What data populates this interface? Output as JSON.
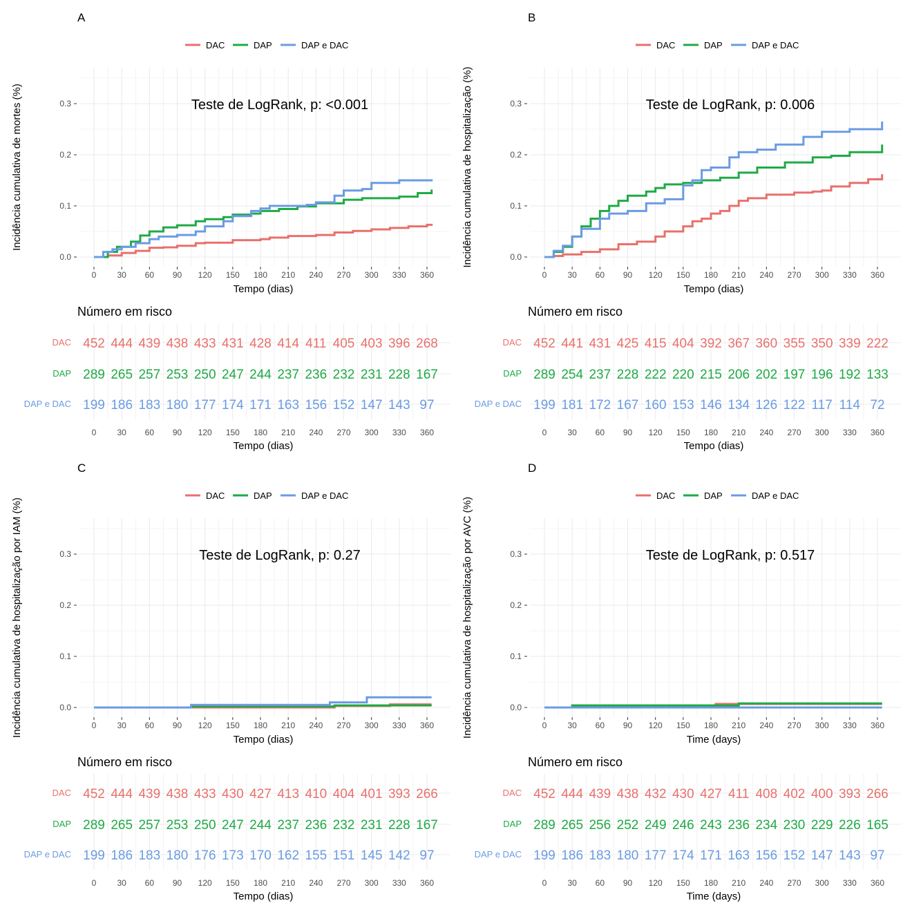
{
  "x_ticks": [
    "0",
    "30",
    "60",
    "90",
    "120",
    "150",
    "180",
    "210",
    "240",
    "270",
    "300",
    "330",
    "360"
  ],
  "y_ticks": [
    "0.0",
    "0.1",
    "0.2",
    "0.3"
  ],
  "risk_title": "Número em risco",
  "colors": {
    "DAC": "#E8706B",
    "DAP": "#1EAA45",
    "DAP e DAC": "#6A9BE3",
    "grid": "#EBEBEB",
    "tick_text": "#4D4D4D"
  },
  "chart_data": [
    {
      "type": "line",
      "panel_label": "A",
      "legend": [
        "DAC",
        "DAP",
        "DAP e DAC"
      ],
      "annotation": "Teste de LogRank, p: <0.001",
      "xlabel": "Tempo (dias)",
      "ylabel": "Incidência cumulativa de mortes (%)",
      "xlim": [
        0,
        365
      ],
      "ylim": [
        0,
        0.35
      ],
      "series": [
        {
          "name": "DAC",
          "x": [
            0,
            15,
            30,
            45,
            60,
            75,
            90,
            110,
            120,
            150,
            180,
            190,
            210,
            240,
            260,
            280,
            300,
            320,
            340,
            360,
            365
          ],
          "y": [
            0,
            0.003,
            0.008,
            0.012,
            0.018,
            0.019,
            0.022,
            0.027,
            0.028,
            0.033,
            0.035,
            0.038,
            0.041,
            0.043,
            0.048,
            0.051,
            0.054,
            0.057,
            0.06,
            0.063,
            0.065
          ]
        },
        {
          "name": "DAP",
          "x": [
            0,
            15,
            25,
            40,
            50,
            60,
            75,
            90,
            110,
            120,
            140,
            150,
            170,
            180,
            200,
            220,
            240,
            270,
            290,
            330,
            350,
            365
          ],
          "y": [
            0,
            0.01,
            0.02,
            0.03,
            0.042,
            0.05,
            0.058,
            0.062,
            0.07,
            0.074,
            0.078,
            0.083,
            0.085,
            0.09,
            0.094,
            0.099,
            0.105,
            0.112,
            0.115,
            0.118,
            0.125,
            0.132
          ]
        },
        {
          "name": "DAP e DAC",
          "x": [
            0,
            10,
            20,
            30,
            45,
            60,
            70,
            90,
            110,
            120,
            140,
            150,
            170,
            180,
            190,
            210,
            230,
            240,
            260,
            270,
            290,
            300,
            330,
            365
          ],
          "y": [
            0,
            0.01,
            0.015,
            0.02,
            0.027,
            0.035,
            0.04,
            0.043,
            0.05,
            0.06,
            0.07,
            0.08,
            0.09,
            0.095,
            0.1,
            0.1,
            0.102,
            0.107,
            0.12,
            0.13,
            0.133,
            0.145,
            0.15,
            0.152
          ]
        }
      ],
      "risk_table": {
        "groups": [
          "DAC",
          "DAP",
          "DAP e DAC"
        ],
        "values": [
          [
            "452",
            "444",
            "439",
            "438",
            "433",
            "431",
            "428",
            "414",
            "411",
            "405",
            "403",
            "396",
            "268"
          ],
          [
            "289",
            "265",
            "257",
            "253",
            "250",
            "247",
            "244",
            "237",
            "236",
            "232",
            "231",
            "228",
            "167"
          ],
          [
            "199",
            "186",
            "183",
            "180",
            "177",
            "174",
            "171",
            "163",
            "156",
            "152",
            "147",
            "143",
            "97"
          ]
        ],
        "xlabel": "Tempo (dias)"
      }
    },
    {
      "type": "line",
      "panel_label": "B",
      "legend": [
        "DAC",
        "DAP",
        "DAP e DAC"
      ],
      "annotation": "Teste de LogRank, p: 0.006",
      "xlabel": "Tempo (dias)",
      "ylabel": "Incidência cumulativa de hospitalização (%)",
      "xlim": [
        0,
        365
      ],
      "ylim": [
        0,
        0.35
      ],
      "series": [
        {
          "name": "DAC",
          "x": [
            0,
            10,
            20,
            40,
            60,
            80,
            100,
            120,
            130,
            150,
            160,
            170,
            180,
            190,
            200,
            210,
            220,
            240,
            270,
            290,
            300,
            310,
            330,
            350,
            365
          ],
          "y": [
            0,
            0.002,
            0.005,
            0.01,
            0.015,
            0.025,
            0.03,
            0.04,
            0.05,
            0.06,
            0.07,
            0.075,
            0.085,
            0.09,
            0.1,
            0.11,
            0.115,
            0.122,
            0.126,
            0.128,
            0.13,
            0.138,
            0.145,
            0.152,
            0.162
          ]
        },
        {
          "name": "DAP",
          "x": [
            0,
            10,
            20,
            30,
            40,
            50,
            60,
            70,
            80,
            90,
            110,
            120,
            130,
            150,
            170,
            190,
            210,
            230,
            260,
            290,
            310,
            330,
            365
          ],
          "y": [
            0,
            0.01,
            0.02,
            0.04,
            0.06,
            0.075,
            0.09,
            0.1,
            0.11,
            0.12,
            0.128,
            0.135,
            0.142,
            0.145,
            0.15,
            0.155,
            0.165,
            0.175,
            0.185,
            0.195,
            0.198,
            0.205,
            0.22
          ]
        },
        {
          "name": "DAP e DAC",
          "x": [
            0,
            10,
            20,
            30,
            40,
            60,
            70,
            90,
            110,
            130,
            150,
            160,
            170,
            180,
            200,
            210,
            230,
            250,
            280,
            300,
            330,
            365
          ],
          "y": [
            0,
            0.012,
            0.022,
            0.04,
            0.055,
            0.075,
            0.085,
            0.09,
            0.105,
            0.113,
            0.14,
            0.15,
            0.17,
            0.175,
            0.195,
            0.205,
            0.21,
            0.22,
            0.235,
            0.245,
            0.25,
            0.265
          ]
        }
      ],
      "risk_table": {
        "groups": [
          "DAC",
          "DAP",
          "DAP e DAC"
        ],
        "values": [
          [
            "452",
            "441",
            "431",
            "425",
            "415",
            "404",
            "392",
            "367",
            "360",
            "355",
            "350",
            "339",
            "222"
          ],
          [
            "289",
            "254",
            "237",
            "228",
            "222",
            "220",
            "215",
            "206",
            "202",
            "197",
            "196",
            "192",
            "133"
          ],
          [
            "199",
            "181",
            "172",
            "167",
            "160",
            "153",
            "146",
            "134",
            "126",
            "122",
            "117",
            "114",
            "72"
          ]
        ],
        "xlabel": "Tempo (dias)"
      }
    },
    {
      "type": "line",
      "panel_label": "C",
      "legend": [
        "DAC",
        "DAP",
        "DAP e DAC"
      ],
      "annotation": "Teste de LogRank, p: 0.27",
      "xlabel": "Tempo (dias)",
      "ylabel": "Incidência cumulativa de hospitalização por IAM (%)",
      "xlim": [
        0,
        365
      ],
      "ylim": [
        0,
        0.35
      ],
      "series": [
        {
          "name": "DAC",
          "x": [
            0,
            250,
            260,
            320,
            365
          ],
          "y": [
            0,
            0,
            0.003,
            0.006,
            0.006
          ]
        },
        {
          "name": "DAP",
          "x": [
            0,
            105,
            250,
            260,
            365
          ],
          "y": [
            0,
            0.002,
            0.002,
            0.004,
            0.004
          ]
        },
        {
          "name": "DAP e DAC",
          "x": [
            0,
            105,
            255,
            295,
            365
          ],
          "y": [
            0,
            0.005,
            0.01,
            0.02,
            0.02
          ]
        }
      ],
      "risk_table": {
        "groups": [
          "DAC",
          "DAP",
          "DAP e DAC"
        ],
        "values": [
          [
            "452",
            "444",
            "439",
            "438",
            "433",
            "430",
            "427",
            "413",
            "410",
            "404",
            "401",
            "393",
            "266"
          ],
          [
            "289",
            "265",
            "257",
            "253",
            "250",
            "247",
            "244",
            "237",
            "236",
            "232",
            "231",
            "228",
            "167"
          ],
          [
            "199",
            "186",
            "183",
            "180",
            "176",
            "173",
            "170",
            "162",
            "155",
            "151",
            "145",
            "142",
            "97"
          ]
        ],
        "xlabel": "Tempo (dias)"
      }
    },
    {
      "type": "line",
      "panel_label": "D",
      "legend": [
        "DAC",
        "DAP",
        "DAP e DAC"
      ],
      "annotation": "Teste de LogRank, p: 0.517",
      "xlabel": "Time (days)",
      "ylabel": "Incidência cumulativa de hospitalização por AVC (%)",
      "xlim": [
        0,
        365
      ],
      "ylim": [
        0,
        0.35
      ],
      "series": [
        {
          "name": "DAC",
          "x": [
            0,
            30,
            185,
            365
          ],
          "y": [
            0,
            0.003,
            0.007,
            0.007
          ]
        },
        {
          "name": "DAP",
          "x": [
            0,
            30,
            210,
            365
          ],
          "y": [
            0,
            0.004,
            0.008,
            0.008
          ]
        },
        {
          "name": "DAP e DAC",
          "x": [
            0,
            365
          ],
          "y": [
            0,
            0
          ]
        }
      ],
      "risk_table": {
        "groups": [
          "DAC",
          "DAP",
          "DAP e DAC"
        ],
        "values": [
          [
            "452",
            "444",
            "439",
            "438",
            "432",
            "430",
            "427",
            "411",
            "408",
            "402",
            "400",
            "393",
            "266"
          ],
          [
            "289",
            "265",
            "256",
            "252",
            "249",
            "246",
            "243",
            "236",
            "234",
            "230",
            "229",
            "226",
            "165"
          ],
          [
            "199",
            "186",
            "183",
            "180",
            "177",
            "174",
            "171",
            "163",
            "156",
            "152",
            "147",
            "143",
            "97"
          ]
        ],
        "xlabel": "Time (days)"
      }
    }
  ]
}
